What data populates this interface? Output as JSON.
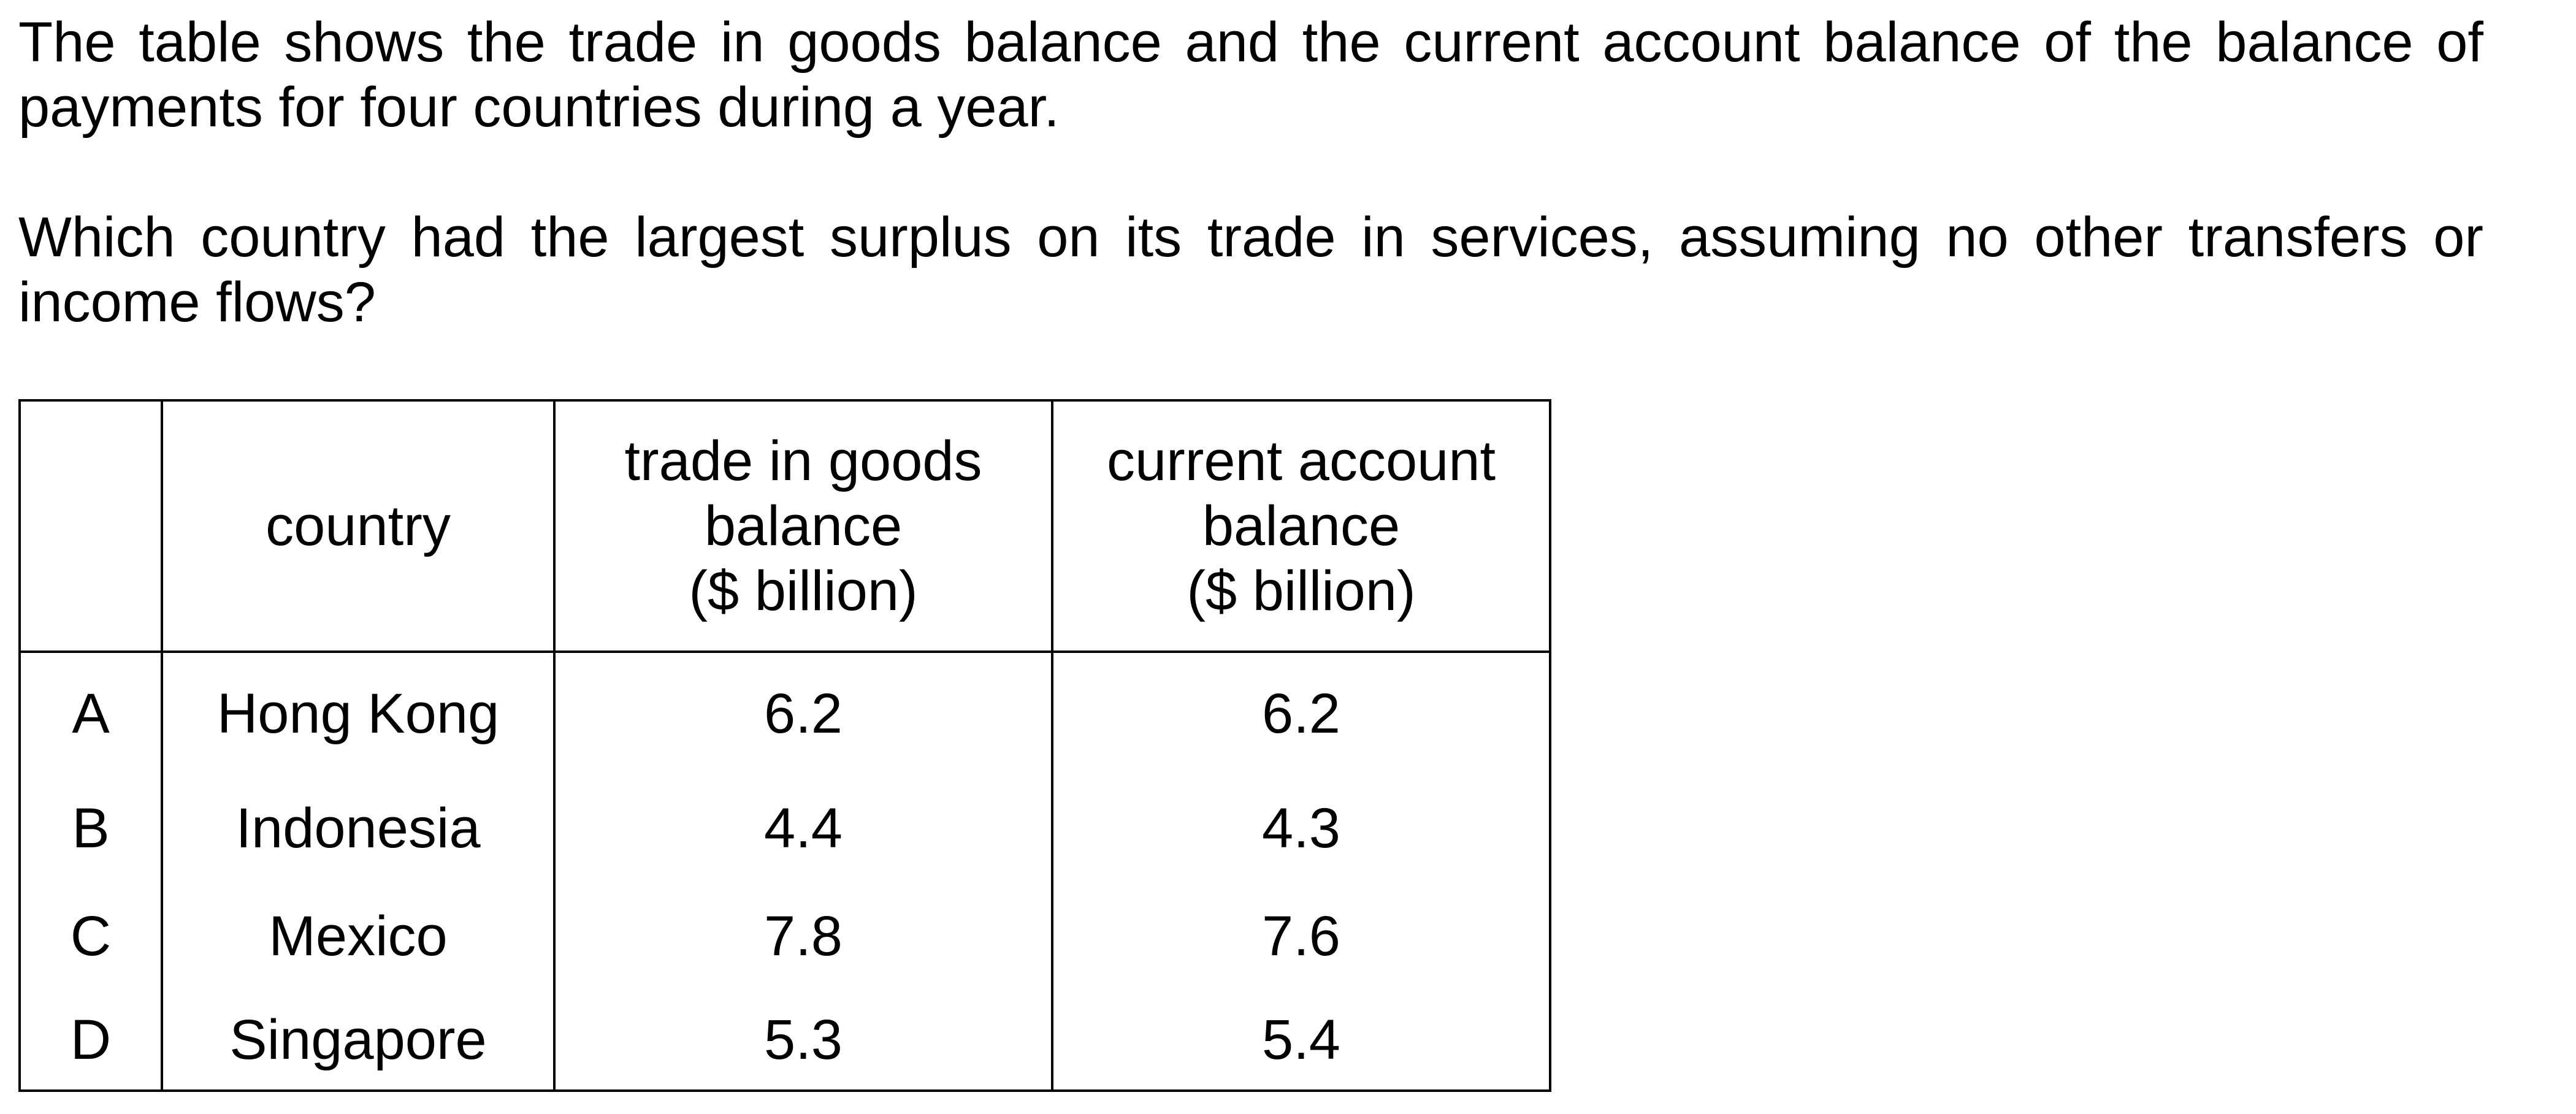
{
  "question": {
    "intro": "The table shows the trade in goods balance and the current account balance of the balance of payments for four countries during a year.",
    "prompt": "Which country had the largest surplus on its trade in services, assuming no other transfers or income flows?"
  },
  "table": {
    "headers": {
      "option": "",
      "country": "country",
      "goods": [
        "trade in goods",
        "balance",
        "($ billion)"
      ],
      "current": [
        "current account",
        "balance",
        "($ billion)"
      ]
    },
    "rows": [
      {
        "option": "A",
        "country": "Hong Kong",
        "goods": "6.2",
        "current": "6.2"
      },
      {
        "option": "B",
        "country": "Indonesia",
        "goods": "4.4",
        "current": "4.3"
      },
      {
        "option": "C",
        "country": "Mexico",
        "goods": "7.8",
        "current": "7.6"
      },
      {
        "option": "D",
        "country": "Singapore",
        "goods": "5.3",
        "current": "5.4"
      }
    ]
  }
}
